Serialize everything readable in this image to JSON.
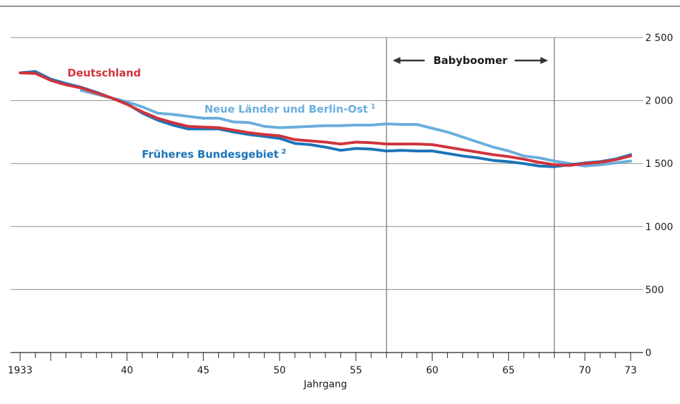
{
  "chart_data": {
    "type": "line",
    "xlabel": "Jahrgang",
    "ylabel": "",
    "xlim": [
      1933,
      1973
    ],
    "ylim": [
      0,
      2500
    ],
    "x_ticks": [
      {
        "value": 1933,
        "label": "1933"
      },
      {
        "value": 1940,
        "label": "40"
      },
      {
        "value": 1945,
        "label": "45"
      },
      {
        "value": 1950,
        "label": "50"
      },
      {
        "value": 1955,
        "label": "55"
      },
      {
        "value": 1960,
        "label": "60"
      },
      {
        "value": 1965,
        "label": "65"
      },
      {
        "value": 1970,
        "label": "70"
      },
      {
        "value": 1973,
        "label": "73"
      }
    ],
    "y_ticks": [
      {
        "value": 0,
        "label": "0"
      },
      {
        "value": 500,
        "label": "500"
      },
      {
        "value": 1000,
        "label": "1 000"
      },
      {
        "value": 1500,
        "label": "1 500"
      },
      {
        "value": 2000,
        "label": "2 000"
      },
      {
        "value": 2500,
        "label": "2 500"
      }
    ],
    "grid": "horizontal",
    "babyboomer": {
      "label": "Babyboomer",
      "start": 1957,
      "end": 1968
    },
    "series": [
      {
        "name": "Deutschland",
        "footnote": "",
        "color": "#d0343a",
        "x": [
          1933,
          1934,
          1935,
          1936,
          1937,
          1938,
          1939,
          1940,
          1941,
          1942,
          1943,
          1944,
          1945,
          1946,
          1947,
          1948,
          1949,
          1950,
          1951,
          1952,
          1953,
          1954,
          1955,
          1956,
          1957,
          1958,
          1959,
          1960,
          1961,
          1962,
          1963,
          1964,
          1965,
          1966,
          1967,
          1968,
          1969,
          1970,
          1971,
          1972,
          1973
        ],
        "y": [
          2220,
          2215,
          2160,
          2125,
          2100,
          2060,
          2020,
          1970,
          1910,
          1860,
          1825,
          1795,
          1790,
          1785,
          1765,
          1745,
          1730,
          1720,
          1690,
          1680,
          1670,
          1655,
          1670,
          1665,
          1655,
          1655,
          1655,
          1650,
          1630,
          1610,
          1590,
          1570,
          1555,
          1535,
          1510,
          1490,
          1485,
          1500,
          1510,
          1530,
          1560
        ]
      },
      {
        "name": "Neue Länder und Berlin-Ost",
        "footnote": "1",
        "color": "#6aaedd",
        "x": [
          1937,
          1938,
          1939,
          1940,
          1941,
          1942,
          1943,
          1944,
          1945,
          1946,
          1947,
          1948,
          1949,
          1950,
          1951,
          1952,
          1953,
          1954,
          1955,
          1956,
          1957,
          1958,
          1959,
          1960,
          1961,
          1962,
          1963,
          1964,
          1965,
          1966,
          1967,
          1968,
          1969,
          1970,
          1971,
          1972,
          1973
        ],
        "y": [
          2080,
          2050,
          2020,
          1990,
          1950,
          1900,
          1890,
          1875,
          1860,
          1860,
          1830,
          1825,
          1795,
          1785,
          1790,
          1795,
          1800,
          1800,
          1805,
          1805,
          1815,
          1810,
          1810,
          1780,
          1750,
          1710,
          1670,
          1630,
          1600,
          1560,
          1545,
          1520,
          1500,
          1480,
          1490,
          1505,
          1520
        ]
      },
      {
        "name": "Früheres Bundesgebiet",
        "footnote": "2",
        "color": "#1b74b9",
        "x": [
          1933,
          1934,
          1935,
          1936,
          1937,
          1938,
          1939,
          1940,
          1941,
          1942,
          1943,
          1944,
          1945,
          1946,
          1947,
          1948,
          1949,
          1950,
          1951,
          1952,
          1953,
          1954,
          1955,
          1956,
          1957,
          1958,
          1959,
          1960,
          1961,
          1962,
          1963,
          1964,
          1965,
          1966,
          1967,
          1968,
          1969,
          1970,
          1971,
          1972,
          1973
        ],
        "y": [
          2220,
          2230,
          2170,
          2135,
          2105,
          2065,
          2020,
          1975,
          1900,
          1845,
          1805,
          1775,
          1775,
          1775,
          1750,
          1730,
          1715,
          1700,
          1660,
          1650,
          1630,
          1605,
          1620,
          1615,
          1600,
          1605,
          1600,
          1600,
          1580,
          1560,
          1545,
          1525,
          1515,
          1500,
          1480,
          1475,
          1490,
          1505,
          1515,
          1535,
          1570
        ]
      }
    ]
  }
}
